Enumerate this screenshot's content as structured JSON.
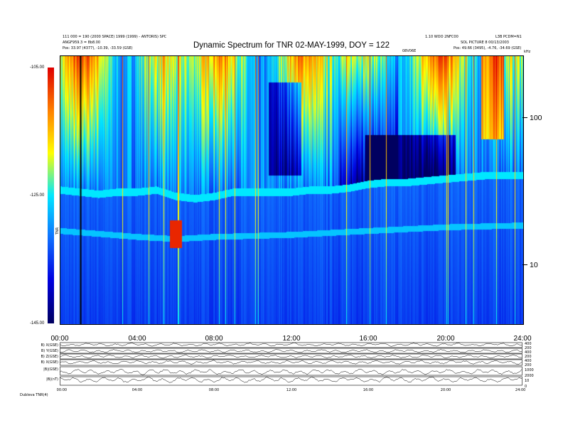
{
  "header": {
    "title": "Dynamic Spectrum for TNR 02-MAY-1999, DOY = 122",
    "left_line1": "111 000 = 190 (2000 SPACE) 1999 (1999) - ANTORIS) SPC",
    "left_line2": "ANGF959.3 = 8b8.00",
    "left_line3": "Pos:    33.97 (4377), -10.39, -33.59 (GSE)",
    "right_line1": "1.10 WOO 2NFC00",
    "right_line1b": "L3B PCDM=N1",
    "right_line2": "SOL PICTURE 8 00/13/2003",
    "right_line3": "Pos:    49.66 (3495), -4.76, -34.69 (GSE)",
    "center_small": "08V06E",
    "top_right_unit": "kHz",
    "colorbar_unit": "TNR",
    "footer": "Dubleva TNR(4)"
  },
  "chart_data": {
    "type": "heatmap",
    "title": "Dynamic Spectrum for TNR 02-MAY-1999, DOY = 122",
    "x_ticks": [
      "00:00",
      "04:00",
      "08:00",
      "12:00",
      "16:00",
      "20:00",
      "24:00"
    ],
    "x_range_hours": [
      0,
      24
    ],
    "y_scale": "log",
    "y_range_khz": [
      4,
      256
    ],
    "y_ticks": [
      "100",
      "10"
    ],
    "y_tick_values_khz": [
      100,
      10
    ],
    "colorbar": {
      "ticks": [
        "-105.00",
        "-125.00",
        "-145.00"
      ],
      "tick_values": [
        -105,
        -125,
        -145
      ],
      "range": [
        -145,
        -105
      ],
      "colors": [
        "#000060",
        "#0000e0",
        "#1070ff",
        "#00e8ff",
        "#ffff00",
        "#ff8000",
        "#e00000"
      ]
    },
    "plasma_line_khz": {
      "hours": [
        0,
        1,
        2,
        3,
        4,
        5,
        6,
        7,
        8,
        9,
        10,
        11,
        12,
        13,
        14,
        15,
        16,
        17,
        18,
        19,
        20,
        21,
        22,
        23,
        24
      ],
      "values": [
        32,
        31,
        30,
        31,
        31,
        32,
        29,
        28,
        29,
        31,
        31,
        31,
        31,
        32,
        32,
        33,
        35,
        36,
        36,
        37,
        38,
        39,
        40,
        40,
        40
      ]
    },
    "lower_line_khz": {
      "hours": [
        0,
        4,
        6,
        8,
        12,
        16,
        20,
        24
      ],
      "values": [
        17,
        15.5,
        15,
        15.5,
        16,
        17,
        18,
        18.5
      ]
    },
    "marker_hour": 1.05
  },
  "lower_panels": {
    "labels": [
      "B) X(GSE)",
      "B) Y(GSE)",
      "B) Z(GSE)",
      "B) X(GSE)",
      "|B|(GSE)",
      "|B|(nT)"
    ],
    "right_values": [
      "400",
      "200",
      "400",
      "200",
      "400",
      "200",
      "1000",
      "2000",
      "10",
      "0"
    ],
    "x_ticks": [
      "00:00",
      "04:00",
      "08:00",
      "12:00",
      "16:00",
      "20:00",
      "24:00"
    ],
    "baselines": [
      0.4,
      0.55,
      0.5,
      0.45,
      0.6,
      0.35
    ]
  }
}
